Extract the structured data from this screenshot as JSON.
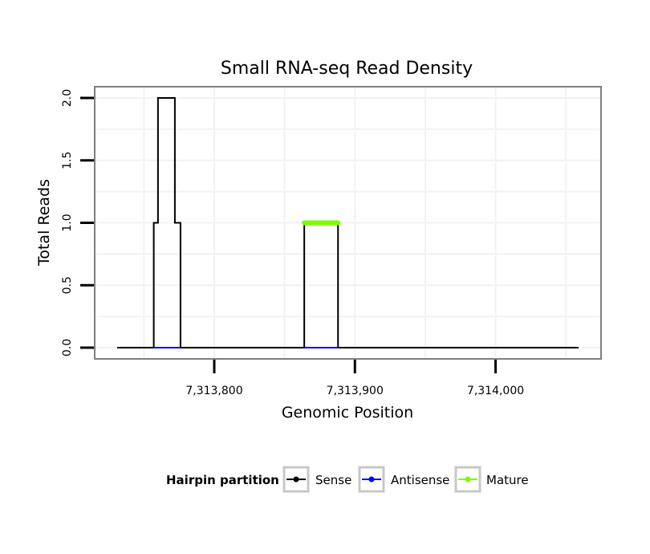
{
  "chart_data": {
    "type": "line",
    "title": "Small RNA-seq Read Density",
    "xlabel": "Genomic Position",
    "ylabel": "Total Reads",
    "xlim": [
      7313715,
      7314075
    ],
    "ylim": [
      -0.09,
      2.09
    ],
    "x_ticks": [
      7313800,
      7313900,
      7314000
    ],
    "x_tick_labels": [
      "7,313,800",
      "7,313,900",
      "7,314,000"
    ],
    "y_ticks": [
      0.0,
      0.5,
      1.0,
      1.5,
      2.0
    ],
    "y_tick_labels": [
      "0.0",
      "0.5",
      "1.0",
      "1.5",
      "2.0"
    ],
    "grid": true,
    "legend": {
      "title": "Hairpin partition",
      "position": "bottom",
      "entries": [
        "Sense",
        "Antisense",
        "Mature"
      ]
    },
    "series": [
      {
        "name": "Sense",
        "color": "#000000",
        "x": [
          7313731,
          7313757,
          7313757,
          7313760,
          7313760,
          7313772,
          7313772,
          7313776,
          7313776,
          7313864,
          7313864,
          7313888,
          7313888,
          7314059
        ],
        "y": [
          0,
          0,
          1,
          1,
          2,
          2,
          1,
          1,
          0,
          0,
          1,
          1,
          0,
          0
        ]
      },
      {
        "name": "Antisense",
        "color": "#0000ff",
        "x": [
          7313757,
          7313776,
          7313864,
          7313888
        ],
        "y": [
          0,
          0,
          0,
          0
        ]
      },
      {
        "name": "Mature",
        "color": "#7cfc00",
        "x": [
          7313864,
          7313888
        ],
        "y": [
          1,
          1
        ]
      }
    ]
  }
}
